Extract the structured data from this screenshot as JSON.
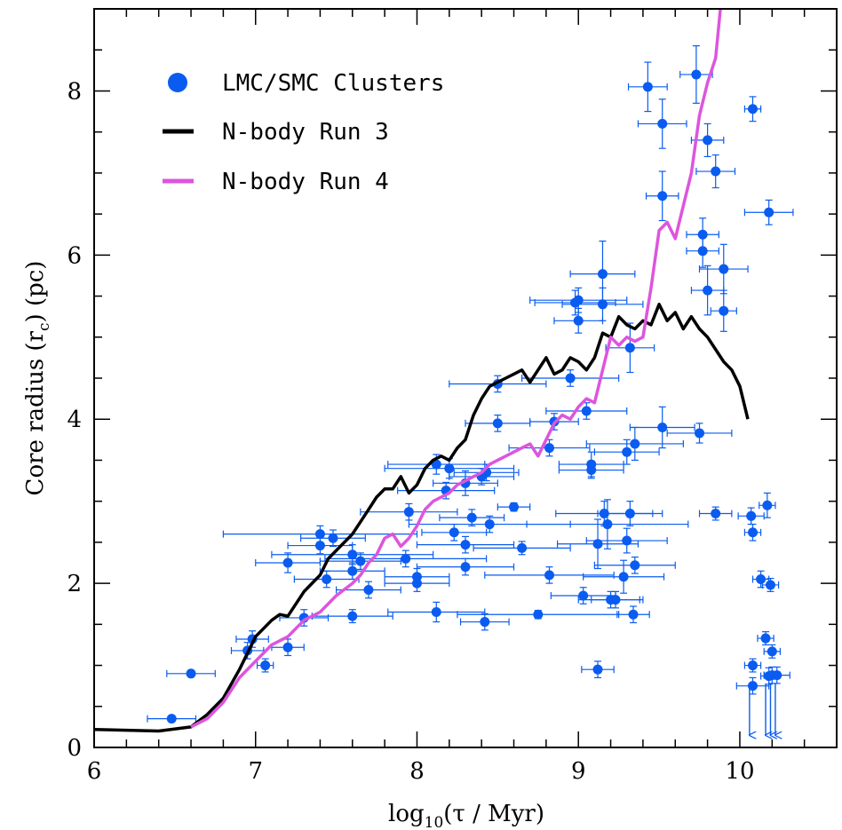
{
  "chart_data": {
    "type": "scatter",
    "xlabel": "log10(τ / Myr)",
    "ylabel": "Core radius (rc) (pc)",
    "xlim": [
      6,
      10.6
    ],
    "ylim": [
      0,
      9
    ],
    "x_ticks": [
      "6",
      "7",
      "8",
      "9",
      "10"
    ],
    "y_ticks": [
      "0",
      "2",
      "4",
      "6",
      "8"
    ],
    "legend_position": "top-left",
    "colors": {
      "clusters": "#0a5cf0",
      "run3": "#000000",
      "run4": "#dd55dd"
    },
    "series": [
      {
        "name": "LMC/SMC Clusters",
        "kind": "points",
        "points": [
          [
            6.48,
            0.35,
            0.15,
            0
          ],
          [
            6.6,
            0.9,
            0.15,
            0
          ],
          [
            6.98,
            1.32,
            0.1,
            0.1
          ],
          [
            6.95,
            1.18,
            0.1,
            0.1
          ],
          [
            7.06,
            1.0,
            0.05,
            0.08
          ],
          [
            7.2,
            1.22,
            0.1,
            0.1
          ],
          [
            7.2,
            2.25,
            0.2,
            0.12
          ],
          [
            7.3,
            1.58,
            0.15,
            0.1
          ],
          [
            7.4,
            2.6,
            0.6,
            0.1
          ],
          [
            7.4,
            2.46,
            0.2,
            0.1
          ],
          [
            7.48,
            2.55,
            0.2,
            0.1
          ],
          [
            7.44,
            2.05,
            0.2,
            0.1
          ],
          [
            7.6,
            2.35,
            0.5,
            0.12
          ],
          [
            7.6,
            1.6,
            0.25,
            0.08
          ],
          [
            7.6,
            2.15,
            0.2,
            0.1
          ],
          [
            7.65,
            2.27,
            0.25,
            0.1
          ],
          [
            7.7,
            1.92,
            0.2,
            0.1
          ],
          [
            7.93,
            2.3,
            0.5,
            0.1
          ],
          [
            7.95,
            2.87,
            0.3,
            0.1
          ],
          [
            8.0,
            2.0,
            0.2,
            0.1
          ],
          [
            8.0,
            2.08,
            0.2,
            0.1
          ],
          [
            8.12,
            3.45,
            0.3,
            0.12
          ],
          [
            8.12,
            1.65,
            0.3,
            0.12
          ],
          [
            8.2,
            3.4,
            0.4,
            0.12
          ],
          [
            8.18,
            3.13,
            0.3,
            0.1
          ],
          [
            8.23,
            2.62,
            0.2,
            0.1
          ],
          [
            8.3,
            2.47,
            0.3,
            0.1
          ],
          [
            8.3,
            3.22,
            0.2,
            0.15
          ],
          [
            8.34,
            2.8,
            0.2,
            0.1
          ],
          [
            8.3,
            2.2,
            0.3,
            0.1
          ],
          [
            8.4,
            3.3,
            0.2,
            0.1
          ],
          [
            8.43,
            3.35,
            0.2,
            0.1
          ],
          [
            8.45,
            2.72,
            0.5,
            0.1
          ],
          [
            8.42,
            1.53,
            0.15,
            0.1
          ],
          [
            8.5,
            4.43,
            0.3,
            0.1
          ],
          [
            8.5,
            3.95,
            0.2,
            0.1
          ],
          [
            8.6,
            2.93,
            0.1,
            0.05
          ],
          [
            8.65,
            2.43,
            0.3,
            0.08
          ],
          [
            8.75,
            1.62,
            0.5,
            0.05
          ],
          [
            8.82,
            2.1,
            0.4,
            0.1
          ],
          [
            8.82,
            3.65,
            0.25,
            0.1
          ],
          [
            8.85,
            3.97,
            0.15,
            0.1
          ],
          [
            8.95,
            4.5,
            0.3,
            0.1
          ],
          [
            8.98,
            5.42,
            0.25,
            0.15
          ],
          [
            9.0,
            5.2,
            0.15,
            0.15
          ],
          [
            9.0,
            5.45,
            0.3,
            0.15
          ],
          [
            9.03,
            1.85,
            0.2,
            0.1
          ],
          [
            9.05,
            4.1,
            0.25,
            0.1
          ],
          [
            9.08,
            3.45,
            0.2,
            0.15
          ],
          [
            9.08,
            3.38,
            0.2,
            0.1
          ],
          [
            9.12,
            0.95,
            0.1,
            0.1
          ],
          [
            9.12,
            2.48,
            0.25,
            0.3
          ],
          [
            9.15,
            5.77,
            0.2,
            0.4
          ],
          [
            9.15,
            5.4,
            0.25,
            0.2
          ],
          [
            9.16,
            2.85,
            0.3,
            0.15
          ],
          [
            9.18,
            2.72,
            0.5,
            0.3
          ],
          [
            9.2,
            1.8,
            0.2,
            0.1
          ],
          [
            9.23,
            1.8,
            0.15,
            0.1
          ],
          [
            9.28,
            2.08,
            0.25,
            0.2
          ],
          [
            9.3,
            3.6,
            0.2,
            0.15
          ],
          [
            9.3,
            2.52,
            0.25,
            0.15
          ],
          [
            9.32,
            2.85,
            0.2,
            0.15
          ],
          [
            9.32,
            4.87,
            0.15,
            0.3
          ],
          [
            9.34,
            1.62,
            0.1,
            0.1
          ],
          [
            9.35,
            3.7,
            0.3,
            0.2
          ],
          [
            9.35,
            2.22,
            0.25,
            0.1
          ],
          [
            9.43,
            8.05,
            0.12,
            0.3
          ],
          [
            9.52,
            7.6,
            0.15,
            0.3
          ],
          [
            9.52,
            6.72,
            0.1,
            0.3
          ],
          [
            9.52,
            3.9,
            0.2,
            0.25
          ],
          [
            9.73,
            8.2,
            0.1,
            0.35
          ],
          [
            9.75,
            3.83,
            0.2,
            0.12
          ],
          [
            9.77,
            6.25,
            0.1,
            0.2
          ],
          [
            9.77,
            6.05,
            0.1,
            0.2
          ],
          [
            9.8,
            7.4,
            0.1,
            0.2
          ],
          [
            9.8,
            5.57,
            0.1,
            0.3
          ],
          [
            9.85,
            7.02,
            0.12,
            0.2
          ],
          [
            9.85,
            2.85,
            0.1,
            0.08
          ],
          [
            9.9,
            5.83,
            0.15,
            0.3
          ],
          [
            9.9,
            5.32,
            0.08,
            0.25
          ],
          [
            10.07,
            2.82,
            0.08,
            0.1
          ],
          [
            10.08,
            2.62,
            0.05,
            0.1
          ],
          [
            10.08,
            7.78,
            0.05,
            0.15
          ],
          [
            10.13,
            2.05,
            0.05,
            0.1
          ],
          [
            10.17,
            2.95,
            0.05,
            0.15
          ],
          [
            10.19,
            1.98,
            0.05,
            0.08
          ],
          [
            10.18,
            6.52,
            0.15,
            0.15
          ],
          [
            10.16,
            1.33,
            0.05,
            0.08
          ],
          [
            10.2,
            1.17,
            0.05,
            0.08
          ],
          [
            10.08,
            1.0,
            0.05,
            0.08
          ],
          [
            10.08,
            0.75,
            0.1,
            0.1
          ],
          [
            10.18,
            0.87,
            0.05,
            0.1
          ],
          [
            10.2,
            0.88,
            0.05,
            0.1
          ],
          [
            10.23,
            0.88,
            0.08,
            0.1
          ]
        ],
        "upper_limit_x": [
          10.06,
          10.16,
          10.19,
          10.22
        ]
      },
      {
        "name": "N-body Run 3",
        "kind": "line",
        "x": [
          6.0,
          6.4,
          6.6,
          6.7,
          6.8,
          6.9,
          6.95,
          7.0,
          7.1,
          7.15,
          7.2,
          7.3,
          7.4,
          7.45,
          7.5,
          7.55,
          7.6,
          7.65,
          7.7,
          7.75,
          7.8,
          7.85,
          7.9,
          7.95,
          8.0,
          8.05,
          8.1,
          8.15,
          8.2,
          8.25,
          8.3,
          8.35,
          8.4,
          8.45,
          8.5,
          8.55,
          8.6,
          8.65,
          8.7,
          8.75,
          8.8,
          8.85,
          8.9,
          8.95,
          9.0,
          9.05,
          9.1,
          9.15,
          9.2,
          9.25,
          9.3,
          9.35,
          9.4,
          9.45,
          9.5,
          9.55,
          9.6,
          9.65,
          9.7,
          9.75,
          9.8,
          9.85,
          9.9,
          9.95,
          10.0,
          10.05
        ],
        "y": [
          0.22,
          0.2,
          0.25,
          0.4,
          0.6,
          0.95,
          1.15,
          1.35,
          1.55,
          1.62,
          1.6,
          1.9,
          2.1,
          2.3,
          2.4,
          2.5,
          2.6,
          2.75,
          2.9,
          3.05,
          3.15,
          3.15,
          3.3,
          3.1,
          3.2,
          3.4,
          3.5,
          3.55,
          3.5,
          3.65,
          3.75,
          4.05,
          4.25,
          4.4,
          4.45,
          4.5,
          4.55,
          4.6,
          4.45,
          4.6,
          4.75,
          4.55,
          4.6,
          4.75,
          4.7,
          4.6,
          4.75,
          5.05,
          5.0,
          5.25,
          5.15,
          5.1,
          5.2,
          5.15,
          5.4,
          5.2,
          5.3,
          5.1,
          5.25,
          5.1,
          5.0,
          4.85,
          4.7,
          4.6,
          4.4,
          4.0
        ]
      },
      {
        "name": "N-body Run 4",
        "kind": "line",
        "x": [
          6.6,
          6.7,
          6.8,
          6.9,
          7.0,
          7.1,
          7.2,
          7.3,
          7.4,
          7.5,
          7.6,
          7.65,
          7.7,
          7.75,
          7.8,
          7.85,
          7.9,
          7.95,
          8.0,
          8.05,
          8.1,
          8.15,
          8.2,
          8.25,
          8.3,
          8.35,
          8.4,
          8.45,
          8.5,
          8.55,
          8.6,
          8.65,
          8.7,
          8.75,
          8.8,
          8.85,
          8.9,
          8.95,
          9.0,
          9.05,
          9.1,
          9.15,
          9.2,
          9.25,
          9.3,
          9.35,
          9.4,
          9.45,
          9.5,
          9.55,
          9.6,
          9.65,
          9.7,
          9.75,
          9.8,
          9.85,
          9.88
        ],
        "y": [
          0.25,
          0.35,
          0.55,
          0.85,
          1.05,
          1.25,
          1.35,
          1.55,
          1.65,
          1.85,
          2.0,
          2.1,
          2.25,
          2.35,
          2.55,
          2.6,
          2.45,
          2.55,
          2.7,
          2.9,
          3.0,
          3.05,
          3.1,
          3.2,
          3.25,
          3.3,
          3.35,
          3.45,
          3.5,
          3.55,
          3.6,
          3.65,
          3.7,
          3.55,
          3.75,
          3.95,
          4.05,
          4.0,
          4.15,
          4.25,
          4.2,
          4.6,
          5.0,
          4.9,
          5.0,
          4.95,
          5.0,
          5.6,
          6.3,
          6.4,
          6.2,
          6.6,
          7.0,
          7.7,
          8.1,
          8.4,
          9.0
        ]
      }
    ]
  }
}
